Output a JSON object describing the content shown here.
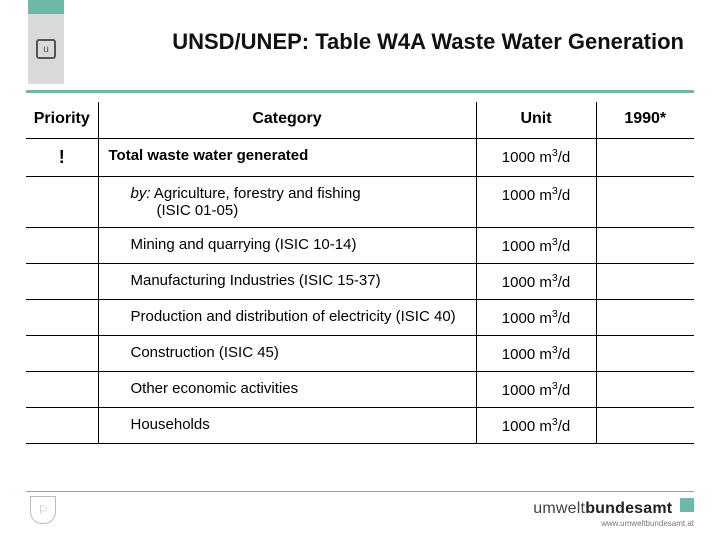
{
  "title": "UNSD/UNEP: Table W4A Waste Water Generation",
  "colors": {
    "accent": "#6fb7a8",
    "text": "#111111",
    "rule": "#000000"
  },
  "table": {
    "columns": {
      "priority": "Priority",
      "category": "Category",
      "unit": "Unit",
      "year": "1990*"
    },
    "unit_html": "1000 m³/d",
    "rows": [
      {
        "priority": "!",
        "category_bold": true,
        "category": "Total waste water generated"
      },
      {
        "priority": "",
        "by": "by:",
        "category": "Agriculture, forestry and fishing (ISIC 01-05)"
      },
      {
        "priority": "",
        "category": "Mining and quarrying (ISIC 10-14)"
      },
      {
        "priority": "",
        "category": "Manufacturing Industries (ISIC 15-37)"
      },
      {
        "priority": "",
        "category": "Production and distribution of electricity (ISIC 40)"
      },
      {
        "priority": "",
        "category": "Construction (ISIC 45)"
      },
      {
        "priority": "",
        "category": "Other economic activities"
      },
      {
        "priority": "",
        "category": "Households"
      }
    ]
  },
  "footer": {
    "brand_part1": "umwelt",
    "brand_part2": "bundesamt",
    "url": "www.umweltbundesamt.at"
  }
}
